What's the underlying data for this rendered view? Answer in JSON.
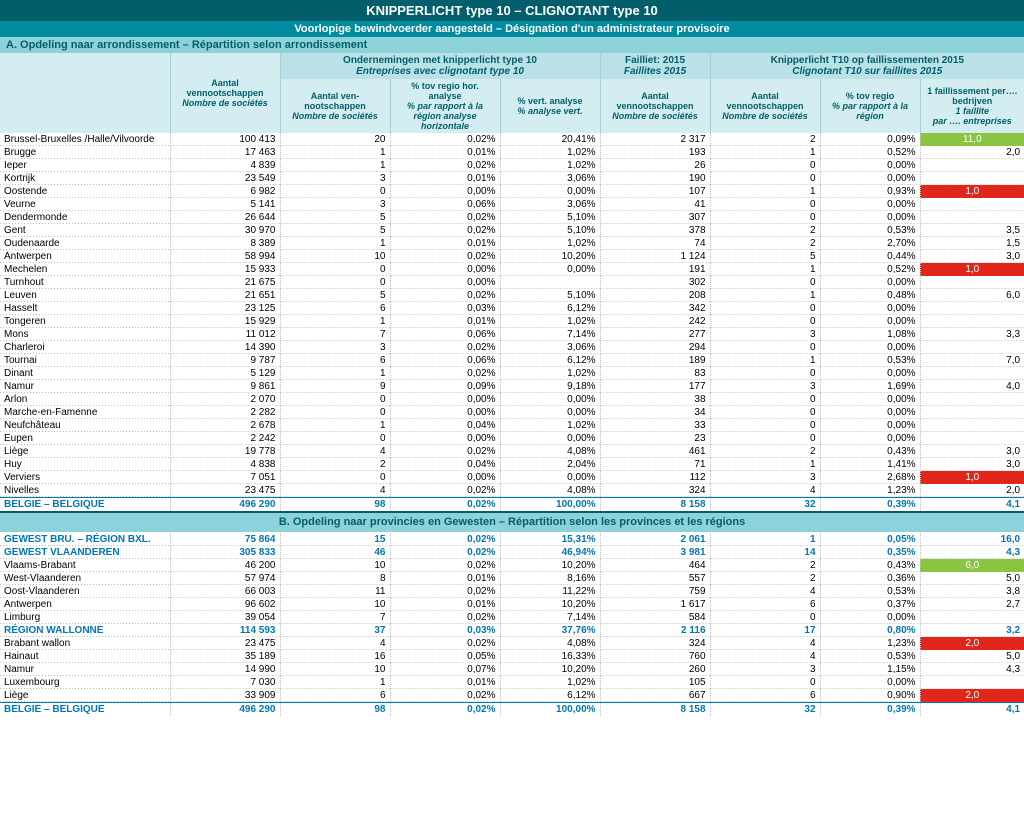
{
  "title": "KNIPPERLICHT type 10  –  CLIGNOTANT type 10",
  "subtitle": "Voorlopige bewindvoerder aangesteld  –  Désignation d'un administrateur provisoire",
  "sectionA": "A. Opdeling naar arrondissement  –  Répartition selon arrondissement",
  "sectionB": "B. Opdeling naar provincies en Gewesten – Répartition selon les provinces et les régions",
  "cols": {
    "c1a": "Aantal vennootschappen",
    "c1b": "Nombre de sociétés",
    "g1a": "Ondernemingen met knipperlicht type 10",
    "g1b": "Entreprises avec clignotant type 10",
    "g2a": "Failliet: 2015",
    "g2b": "Faillites 2015",
    "g3a": "Knipperlicht  T10 op faillissementen 2015",
    "g3b": "Clignotant T10 sur faillites 2015",
    "c2a": "Aantal ven-nootschappen",
    "c2b": "Nombre de sociétés",
    "c3a": "% tov regio hor. analyse",
    "c3b": "% par rapport à la région analyse horizontale",
    "c4a": "% vert. analyse",
    "c4b": "% analyse vert.",
    "c5a": "Aantal vennootschappen",
    "c5b": "Nombre de sociétés",
    "c6a": "Aantal vennootschappen",
    "c6b": "Nombre de sociétés",
    "c7a": "% tov regio",
    "c7b": "% par rapport à la région",
    "c8a": "1 faillissement per…. bedrijven",
    "c8b": "1 faillite",
    "c8c": "par …. entreprises"
  },
  "rowsA": [
    {
      "n": "Brussel-Bruxelles /Halle/Vilvoorde",
      "c1": "100 413",
      "c2": "20",
      "c3": "0,02%",
      "c4": "20,41%",
      "c5": "2 317",
      "c6": "2",
      "c7": "0,09%",
      "c8": "11,0",
      "hl": "green"
    },
    {
      "n": "Brugge",
      "c1": "17 463",
      "c2": "1",
      "c3": "0,01%",
      "c4": "1,02%",
      "c5": "193",
      "c6": "1",
      "c7": "0,52%",
      "c8": "2,0"
    },
    {
      "n": "Ieper",
      "c1": "4 839",
      "c2": "1",
      "c3": "0,02%",
      "c4": "1,02%",
      "c5": "26",
      "c6": "0",
      "c7": "0,00%",
      "c8": ""
    },
    {
      "n": "Kortrijk",
      "c1": "23 549",
      "c2": "3",
      "c3": "0,01%",
      "c4": "3,06%",
      "c5": "190",
      "c6": "0",
      "c7": "0,00%",
      "c8": ""
    },
    {
      "n": "Oostende",
      "c1": "6 982",
      "c2": "0",
      "c3": "0,00%",
      "c4": "0,00%",
      "c5": "107",
      "c6": "1",
      "c7": "0,93%",
      "c8": "1,0",
      "hl": "red"
    },
    {
      "n": "Veurne",
      "c1": "5 141",
      "c2": "3",
      "c3": "0,06%",
      "c4": "3,06%",
      "c5": "41",
      "c6": "0",
      "c7": "0,00%",
      "c8": ""
    },
    {
      "n": "Dendermonde",
      "c1": "26 644",
      "c2": "5",
      "c3": "0,02%",
      "c4": "5,10%",
      "c5": "307",
      "c6": "0",
      "c7": "0,00%",
      "c8": ""
    },
    {
      "n": "Gent",
      "c1": "30 970",
      "c2": "5",
      "c3": "0,02%",
      "c4": "5,10%",
      "c5": "378",
      "c6": "2",
      "c7": "0,53%",
      "c8": "3,5"
    },
    {
      "n": "Oudenaarde",
      "c1": "8 389",
      "c2": "1",
      "c3": "0,01%",
      "c4": "1,02%",
      "c5": "74",
      "c6": "2",
      "c7": "2,70%",
      "c8": "1,5"
    },
    {
      "n": "Antwerpen",
      "c1": "58 994",
      "c2": "10",
      "c3": "0,02%",
      "c4": "10,20%",
      "c5": "1 124",
      "c6": "5",
      "c7": "0,44%",
      "c8": "3,0"
    },
    {
      "n": "Mechelen",
      "c1": "15 933",
      "c2": "0",
      "c3": "0,00%",
      "c4": "0,00%",
      "c5": "191",
      "c6": "1",
      "c7": "0,52%",
      "c8": "1,0",
      "hl": "red"
    },
    {
      "n": "Turnhout",
      "c1": "21 675",
      "c2": "0",
      "c3": "0,00%",
      "c4": "",
      "c5": "302",
      "c6": "0",
      "c7": "0,00%",
      "c8": ""
    },
    {
      "n": "Leuven",
      "c1": "21 651",
      "c2": "5",
      "c3": "0,02%",
      "c4": "5,10%",
      "c5": "208",
      "c6": "1",
      "c7": "0,48%",
      "c8": "6,0"
    },
    {
      "n": "Hasselt",
      "c1": "23 125",
      "c2": "6",
      "c3": "0,03%",
      "c4": "6,12%",
      "c5": "342",
      "c6": "0",
      "c7": "0,00%",
      "c8": ""
    },
    {
      "n": "Tongeren",
      "c1": "15 929",
      "c2": "1",
      "c3": "0,01%",
      "c4": "1,02%",
      "c5": "242",
      "c6": "0",
      "c7": "0,00%",
      "c8": ""
    },
    {
      "n": "Mons",
      "c1": "11 012",
      "c2": "7",
      "c3": "0,06%",
      "c4": "7,14%",
      "c5": "277",
      "c6": "3",
      "c7": "1,08%",
      "c8": "3,3"
    },
    {
      "n": "Charleroi",
      "c1": "14 390",
      "c2": "3",
      "c3": "0,02%",
      "c4": "3,06%",
      "c5": "294",
      "c6": "0",
      "c7": "0,00%",
      "c8": ""
    },
    {
      "n": "Tournai",
      "c1": "9 787",
      "c2": "6",
      "c3": "0,06%",
      "c4": "6,12%",
      "c5": "189",
      "c6": "1",
      "c7": "0,53%",
      "c8": "7,0"
    },
    {
      "n": "Dinant",
      "c1": "5 129",
      "c2": "1",
      "c3": "0,02%",
      "c4": "1,02%",
      "c5": "83",
      "c6": "0",
      "c7": "0,00%",
      "c8": ""
    },
    {
      "n": "Namur",
      "c1": "9 861",
      "c2": "9",
      "c3": "0,09%",
      "c4": "9,18%",
      "c5": "177",
      "c6": "3",
      "c7": "1,69%",
      "c8": "4,0"
    },
    {
      "n": "Arlon",
      "c1": "2 070",
      "c2": "0",
      "c3": "0,00%",
      "c4": "0,00%",
      "c5": "38",
      "c6": "0",
      "c7": "0,00%",
      "c8": ""
    },
    {
      "n": "Marche-en-Famenne",
      "c1": "2 282",
      "c2": "0",
      "c3": "0,00%",
      "c4": "0,00%",
      "c5": "34",
      "c6": "0",
      "c7": "0,00%",
      "c8": ""
    },
    {
      "n": "Neufchâteau",
      "c1": "2 678",
      "c2": "1",
      "c3": "0,04%",
      "c4": "1,02%",
      "c5": "33",
      "c6": "0",
      "c7": "0,00%",
      "c8": ""
    },
    {
      "n": "Eupen",
      "c1": "2 242",
      "c2": "0",
      "c3": "0,00%",
      "c4": "0,00%",
      "c5": "23",
      "c6": "0",
      "c7": "0,00%",
      "c8": ""
    },
    {
      "n": "Liège",
      "c1": "19 778",
      "c2": "4",
      "c3": "0,02%",
      "c4": "4,08%",
      "c5": "461",
      "c6": "2",
      "c7": "0,43%",
      "c8": "3,0"
    },
    {
      "n": "Huy",
      "c1": "4 838",
      "c2": "2",
      "c3": "0,04%",
      "c4": "2,04%",
      "c5": "71",
      "c6": "1",
      "c7": "1,41%",
      "c8": "3,0"
    },
    {
      "n": "Verviers",
      "c1": "7 051",
      "c2": "0",
      "c3": "0,00%",
      "c4": "0,00%",
      "c5": "112",
      "c6": "3",
      "c7": "2,68%",
      "c8": "1,0",
      "hl": "red"
    },
    {
      "n": "Nivelles",
      "c1": "23 475",
      "c2": "4",
      "c3": "0,02%",
      "c4": "4,08%",
      "c5": "324",
      "c6": "4",
      "c7": "1,23%",
      "c8": "2,0"
    }
  ],
  "totalA": {
    "n": "BELGIE – BELGIQUE",
    "c1": "496 290",
    "c2": "98",
    "c3": "0,02%",
    "c4": "100,00%",
    "c5": "8 158",
    "c6": "32",
    "c7": "0,39%",
    "c8": "4,1"
  },
  "rowsB": [
    {
      "n": "GEWEST BRU. – RÉGION BXL.",
      "c1": "75 864",
      "c2": "15",
      "c3": "0,02%",
      "c4": "15,31%",
      "c5": "2 061",
      "c6": "1",
      "c7": "0,05%",
      "c8": "16,0",
      "region": true
    },
    {
      "n": "GEWEST VLAANDEREN",
      "c1": "305 833",
      "c2": "46",
      "c3": "0,02%",
      "c4": "46,94%",
      "c5": "3 981",
      "c6": "14",
      "c7": "0,35%",
      "c8": "4,3",
      "region": true
    },
    {
      "n": "Vlaams-Brabant",
      "c1": "46 200",
      "c2": "10",
      "c3": "0,02%",
      "c4": "10,20%",
      "c5": "464",
      "c6": "2",
      "c7": "0,43%",
      "c8": "6,0",
      "hl": "green"
    },
    {
      "n": "West-Vlaanderen",
      "c1": "57 974",
      "c2": "8",
      "c3": "0,01%",
      "c4": "8,16%",
      "c5": "557",
      "c6": "2",
      "c7": "0,36%",
      "c8": "5,0"
    },
    {
      "n": "Oost-Vlaanderen",
      "c1": "66 003",
      "c2": "11",
      "c3": "0,02%",
      "c4": "11,22%",
      "c5": "759",
      "c6": "4",
      "c7": "0,53%",
      "c8": "3,8"
    },
    {
      "n": "Antwerpen",
      "c1": "96 602",
      "c2": "10",
      "c3": "0,01%",
      "c4": "10,20%",
      "c5": "1 617",
      "c6": "6",
      "c7": "0,37%",
      "c8": "2,7"
    },
    {
      "n": "Limburg",
      "c1": "39 054",
      "c2": "7",
      "c3": "0,02%",
      "c4": "7,14%",
      "c5": "584",
      "c6": "0",
      "c7": "0,00%",
      "c8": ""
    },
    {
      "n": "RÉGION WALLONNE",
      "c1": "114 593",
      "c2": "37",
      "c3": "0,03%",
      "c4": "37,76%",
      "c5": "2 116",
      "c6": "17",
      "c7": "0,80%",
      "c8": "3,2",
      "region": true
    },
    {
      "n": "Brabant wallon",
      "c1": "23 475",
      "c2": "4",
      "c3": "0,02%",
      "c4": "4,08%",
      "c5": "324",
      "c6": "4",
      "c7": "1,23%",
      "c8": "2,0",
      "hl": "red"
    },
    {
      "n": "Hainaut",
      "c1": "35 189",
      "c2": "16",
      "c3": "0,05%",
      "c4": "16,33%",
      "c5": "760",
      "c6": "4",
      "c7": "0,53%",
      "c8": "5,0"
    },
    {
      "n": "Namur",
      "c1": "14 990",
      "c2": "10",
      "c3": "0,07%",
      "c4": "10,20%",
      "c5": "260",
      "c6": "3",
      "c7": "1,15%",
      "c8": "4,3"
    },
    {
      "n": "Luxembourg",
      "c1": "7 030",
      "c2": "1",
      "c3": "0,01%",
      "c4": "1,02%",
      "c5": "105",
      "c6": "0",
      "c7": "0,00%",
      "c8": ""
    },
    {
      "n": "Liège",
      "c1": "33 909",
      "c2": "6",
      "c3": "0,02%",
      "c4": "6,12%",
      "c5": "667",
      "c6": "6",
      "c7": "0,90%",
      "c8": "2,0",
      "hl": "red"
    }
  ],
  "totalB": {
    "n": "BELGIE – BELGIQUE",
    "c1": "496 290",
    "c2": "98",
    "c3": "0,02%",
    "c4": "100,00%",
    "c5": "8 158",
    "c6": "32",
    "c7": "0,39%",
    "c8": "4,1"
  }
}
